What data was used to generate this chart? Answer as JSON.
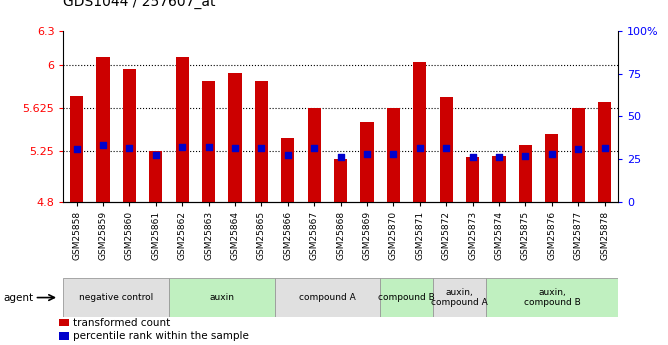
{
  "title": "GDS1044 / 257607_at",
  "samples": [
    "GSM25858",
    "GSM25859",
    "GSM25860",
    "GSM25861",
    "GSM25862",
    "GSM25863",
    "GSM25864",
    "GSM25865",
    "GSM25866",
    "GSM25867",
    "GSM25868",
    "GSM25869",
    "GSM25870",
    "GSM25871",
    "GSM25872",
    "GSM25873",
    "GSM25874",
    "GSM25875",
    "GSM25876",
    "GSM25877",
    "GSM25878"
  ],
  "bar_tops": [
    5.73,
    6.07,
    5.97,
    5.25,
    6.07,
    5.86,
    5.93,
    5.86,
    5.36,
    5.62,
    5.18,
    5.5,
    5.62,
    6.03,
    5.72,
    5.19,
    5.2,
    5.3,
    5.4,
    5.62,
    5.68
  ],
  "blue_dots": [
    5.26,
    5.3,
    5.27,
    5.21,
    5.28,
    5.28,
    5.27,
    5.27,
    5.21,
    5.27,
    5.19,
    5.22,
    5.22,
    5.27,
    5.27,
    5.19,
    5.19,
    5.2,
    5.22,
    5.26,
    5.27
  ],
  "bar_bottom": 4.8,
  "ylim_left": [
    4.8,
    6.3
  ],
  "ylim_right": [
    0,
    100
  ],
  "yticks_left": [
    4.8,
    5.25,
    5.625,
    6.0,
    6.3
  ],
  "yticks_right": [
    0,
    25,
    50,
    75,
    100
  ],
  "ytick_labels_left": [
    "4.8",
    "5.25",
    "5.625",
    "6",
    "6.3"
  ],
  "ytick_labels_right": [
    "0",
    "25",
    "50",
    "75",
    "100%"
  ],
  "hlines": [
    5.25,
    5.625,
    6.0
  ],
  "bar_color": "#cc0000",
  "dot_color": "#0000cc",
  "agent_groups": [
    {
      "label": "negative control",
      "start": 0,
      "end": 4,
      "color": "#e0e0e0"
    },
    {
      "label": "auxin",
      "start": 4,
      "end": 8,
      "color": "#c0f0c0"
    },
    {
      "label": "compound A",
      "start": 8,
      "end": 12,
      "color": "#e0e0e0"
    },
    {
      "label": "compound B",
      "start": 12,
      "end": 14,
      "color": "#c0f0c0"
    },
    {
      "label": "auxin,\ncompound A",
      "start": 14,
      "end": 16,
      "color": "#e0e0e0"
    },
    {
      "label": "auxin,\ncompound B",
      "start": 16,
      "end": 21,
      "color": "#c0f0c0"
    }
  ],
  "legend_items": [
    {
      "color": "#cc0000",
      "label": "transformed count"
    },
    {
      "color": "#0000cc",
      "label": "percentile rank within the sample"
    }
  ],
  "bar_width": 0.5,
  "title_fontsize": 10,
  "tick_fontsize": 8,
  "label_fontsize": 6.5
}
